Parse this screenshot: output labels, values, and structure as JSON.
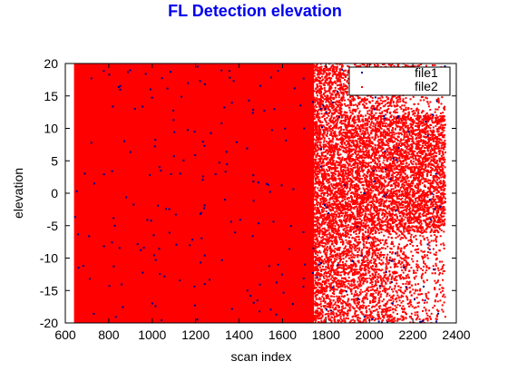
{
  "chart_data": {
    "type": "scatter",
    "title": "FL Detection elevation",
    "title_color": "#0000ee",
    "xlabel": "scan index",
    "ylabel": "elevation",
    "xlim": [
      600,
      2400
    ],
    "ylim": [
      -20,
      20
    ],
    "x_ticks": [
      "600",
      "800",
      "1000",
      "1200",
      "1400",
      "1600",
      "1800",
      "2000",
      "2200",
      "2400"
    ],
    "y_ticks": [
      "20",
      "15",
      "10",
      "5",
      "0",
      "-5",
      "-10",
      "-15",
      "-20"
    ],
    "grid": false,
    "legend_position": "top-right",
    "series": [
      {
        "name": "file1",
        "color": "#00008b",
        "x_range": [
          640,
          2350
        ],
        "y_range": [
          -20,
          20
        ]
      },
      {
        "name": "file2",
        "color": "#ff0000",
        "x_range": [
          640,
          2350
        ],
        "y_range": [
          -20,
          20
        ]
      }
    ]
  }
}
